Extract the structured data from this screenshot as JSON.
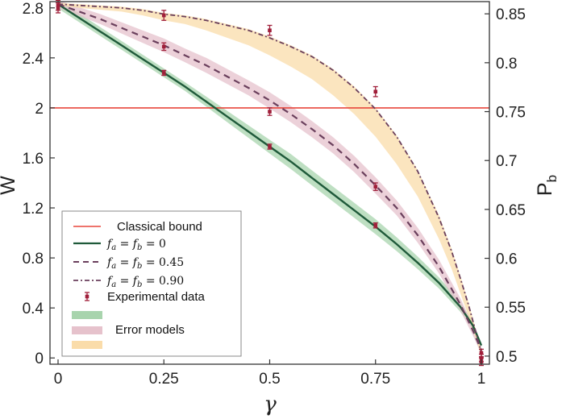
{
  "chart_data": {
    "type": "line",
    "xlabel": "γ",
    "ylabel_left": "W",
    "ylabel_right": "P",
    "ylabel_right_sub": "b",
    "xlim": [
      0,
      1
    ],
    "ylim_left": [
      -0.05,
      2.85
    ],
    "ylim_right": [
      0.4917,
      0.8625
    ],
    "x_ticks": [
      0,
      0.25,
      0.5,
      0.75,
      1
    ],
    "x_tick_labels": [
      "0",
      "0.25",
      "0.5",
      "0.75",
      "1"
    ],
    "y_ticks_left": [
      0,
      0.4,
      0.8,
      1.2,
      1.6,
      2,
      2.4,
      2.8
    ],
    "y_tick_labels_left": [
      "0",
      "0.4",
      "0.8",
      "1.2",
      "1.6",
      "2",
      "2.4",
      "2.8"
    ],
    "y_ticks_right": [
      0.5,
      0.55,
      0.6,
      0.65,
      0.7,
      0.75,
      0.8,
      0.85
    ],
    "y_tick_labels_right": [
      "0.5",
      "0.55",
      "0.6",
      "0.65",
      "0.7",
      "0.75",
      "0.8",
      "0.85"
    ],
    "grid": false,
    "legend_position": "bottom-left",
    "classical_bound": {
      "label": "Classical bound",
      "value": 2,
      "color": "#e8463c"
    },
    "series": [
      {
        "label_parts": [
          "f",
          "a",
          " = ",
          "f",
          "b",
          " = 0"
        ],
        "style": "solid",
        "color": "#1f5a3a",
        "band_color": "#a8d4ad",
        "x": [
          0,
          0.05,
          0.1,
          0.15,
          0.2,
          0.25,
          0.3,
          0.35,
          0.4,
          0.45,
          0.5,
          0.55,
          0.6,
          0.65,
          0.7,
          0.75,
          0.8,
          0.85,
          0.9,
          0.95,
          0.98,
          1
        ],
        "y": [
          2.83,
          2.72,
          2.61,
          2.5,
          2.39,
          2.28,
          2.17,
          2.05,
          1.93,
          1.81,
          1.69,
          1.57,
          1.44,
          1.31,
          1.18,
          1.05,
          0.91,
          0.76,
          0.6,
          0.41,
          0.26,
          0.1
        ],
        "band": [
          0.035,
          0.035,
          0.035,
          0.035,
          0.035,
          0.035,
          0.035,
          0.04,
          0.045,
          0.05,
          0.055,
          0.06,
          0.06,
          0.06,
          0.06,
          0.06,
          0.055,
          0.05,
          0.045,
          0.04,
          0.03,
          0.02
        ]
      },
      {
        "label_parts": [
          "f",
          "a",
          " = ",
          "f",
          "b",
          " = 0.45"
        ],
        "style": "dashed",
        "color": "#6a3f5c",
        "band_color": "#e6c2cc",
        "x": [
          0,
          0.05,
          0.1,
          0.15,
          0.2,
          0.25,
          0.3,
          0.35,
          0.4,
          0.45,
          0.5,
          0.55,
          0.6,
          0.65,
          0.7,
          0.75,
          0.8,
          0.85,
          0.9,
          0.95,
          0.98,
          1
        ],
        "y": [
          2.83,
          2.77,
          2.71,
          2.64,
          2.57,
          2.5,
          2.42,
          2.34,
          2.25,
          2.16,
          2.06,
          1.95,
          1.83,
          1.7,
          1.55,
          1.38,
          1.2,
          0.98,
          0.73,
          0.43,
          0.22,
          0.06
        ],
        "band": [
          0.03,
          0.035,
          0.04,
          0.045,
          0.05,
          0.055,
          0.055,
          0.06,
          0.06,
          0.06,
          0.065,
          0.065,
          0.065,
          0.065,
          0.065,
          0.065,
          0.06,
          0.06,
          0.055,
          0.05,
          0.04,
          0.03
        ]
      },
      {
        "label_parts": [
          "f",
          "a",
          " = ",
          "f",
          "b",
          " = 0.90"
        ],
        "style": "dashdot",
        "color": "#6a3f5c",
        "band_color": "#fadcaa",
        "x": [
          0,
          0.05,
          0.1,
          0.15,
          0.2,
          0.25,
          0.3,
          0.35,
          0.4,
          0.45,
          0.5,
          0.55,
          0.6,
          0.65,
          0.7,
          0.75,
          0.8,
          0.85,
          0.9,
          0.93,
          0.95,
          0.97,
          0.99,
          1
        ],
        "y": [
          2.83,
          2.82,
          2.81,
          2.8,
          2.78,
          2.75,
          2.73,
          2.7,
          2.66,
          2.62,
          2.56,
          2.49,
          2.41,
          2.3,
          2.16,
          1.99,
          1.77,
          1.49,
          1.12,
          0.85,
          0.64,
          0.42,
          0.17,
          0.04
        ],
        "band_lower": [
          0.01,
          0.02,
          0.025,
          0.03,
          0.04,
          0.05,
          0.06,
          0.08,
          0.1,
          0.12,
          0.14,
          0.16,
          0.18,
          0.2,
          0.21,
          0.22,
          0.22,
          0.2,
          0.17,
          0.14,
          0.12,
          0.09,
          0.05,
          0.03
        ],
        "band_upper": [
          0.01,
          0.01,
          0.01,
          0.01,
          0.01,
          0.01,
          0.01,
          0.01,
          0.01,
          0.01,
          0.01,
          0.01,
          0.01,
          0.01,
          0.01,
          0.01,
          0.01,
          0.01,
          0.02,
          0.02,
          0.02,
          0.02,
          0.02,
          0.02
        ]
      }
    ],
    "experimental_data": {
      "label": "Experimental data",
      "color": "#a01f3a",
      "points": [
        {
          "x": 0,
          "y": 2.82,
          "err": 0.04
        },
        {
          "x": 0,
          "y": 2.8,
          "err": 0.04
        },
        {
          "x": 0.25,
          "y": 2.74,
          "err": 0.04
        },
        {
          "x": 0.25,
          "y": 2.49,
          "err": 0.03
        },
        {
          "x": 0.25,
          "y": 2.28,
          "err": 0.02
        },
        {
          "x": 0.5,
          "y": 2.62,
          "err": 0.04
        },
        {
          "x": 0.5,
          "y": 1.97,
          "err": 0.03
        },
        {
          "x": 0.5,
          "y": 1.69,
          "err": 0.02
        },
        {
          "x": 0.75,
          "y": 2.13,
          "err": 0.04
        },
        {
          "x": 0.75,
          "y": 1.37,
          "err": 0.03
        },
        {
          "x": 0.75,
          "y": 1.06,
          "err": 0.02
        },
        {
          "x": 1,
          "y": 0.04,
          "err": 0.03
        },
        {
          "x": 1,
          "y": 0.0,
          "err": 0.03
        },
        {
          "x": 1,
          "y": -0.03,
          "err": 0.03
        }
      ]
    },
    "error_models_label": "Error models"
  }
}
